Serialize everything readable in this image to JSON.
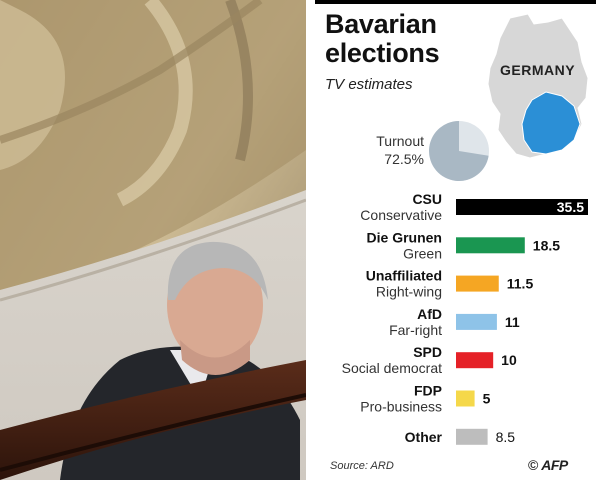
{
  "title_line1": "Bavarian",
  "title_line2": "elections",
  "subtitle": "TV estimates",
  "map": {
    "label": "GERMANY",
    "country_color": "#d7d7d7",
    "region_color": "#2b8fd6"
  },
  "turnout": {
    "label": "Turnout",
    "value_text": "72.5%",
    "value": 72.5,
    "color_filled": "#a9b8c4",
    "color_rest": "#dfe5ea"
  },
  "source": "Source: ARD",
  "credit": {
    "symbol": "©",
    "text": "AFP"
  },
  "chart_data": {
    "type": "bar",
    "orientation": "horizontal",
    "title": "Bavarian elections",
    "subtitle": "TV estimates",
    "categories": [
      "CSU",
      "Die Grunen",
      "Unaffiliated",
      "AfD",
      "SPD",
      "FDP",
      "Other"
    ],
    "descriptions": [
      "Conservative",
      "Green",
      "Right-wing",
      "Far-right",
      "Social democrat",
      "Pro-business",
      ""
    ],
    "values": [
      35.5,
      18.5,
      11.5,
      11,
      10,
      5,
      8.5
    ],
    "labels": [
      "35.5",
      "18.5",
      "11.5",
      "11",
      "10",
      "5",
      "8.5"
    ],
    "colors": [
      "#000000",
      "#1a9651",
      "#f5a623",
      "#8ec3e8",
      "#e52127",
      "#f5d84a",
      "#bdbdbd"
    ],
    "xlim": [
      0,
      35.5
    ],
    "grid": false,
    "legend": "none"
  }
}
